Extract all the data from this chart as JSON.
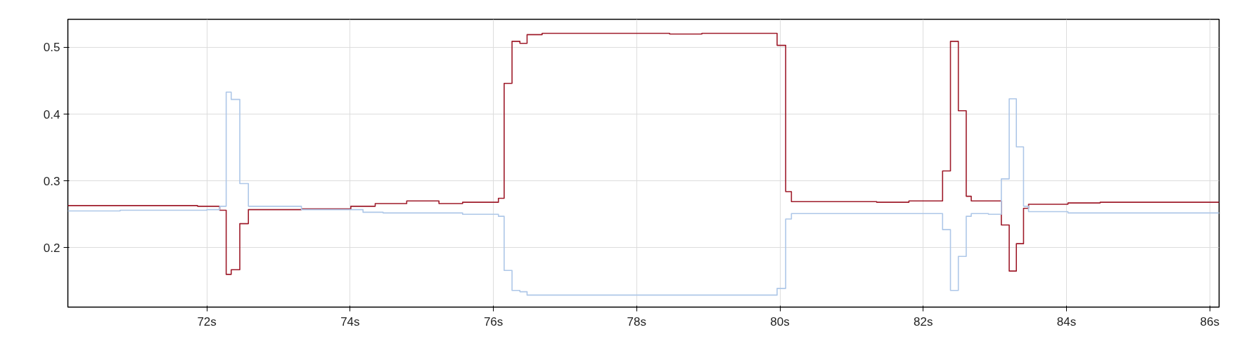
{
  "chart_data": {
    "type": "step",
    "series": [
      {
        "color": "#9e1b2a",
        "x": [
          70.06,
          71.87,
          72.18,
          72.27,
          72.34,
          72.46,
          72.58,
          73.32,
          74.01,
          74.35,
          74.79,
          75.24,
          75.57,
          76.07,
          76.15,
          76.26,
          76.37,
          76.47,
          76.68,
          78.46,
          78.91,
          79.96,
          80.08,
          80.16,
          81.35,
          81.8,
          82.27,
          82.38,
          82.49,
          82.6,
          82.67,
          83.09,
          83.2,
          83.3,
          83.4,
          83.47,
          84.02,
          84.47,
          86.13
        ],
        "values": [
          0.263,
          0.262,
          0.256,
          0.16,
          0.167,
          0.236,
          0.257,
          0.258,
          0.262,
          0.266,
          0.27,
          0.266,
          0.268,
          0.274,
          0.446,
          0.509,
          0.506,
          0.519,
          0.521,
          0.52,
          0.521,
          0.503,
          0.284,
          0.269,
          0.268,
          0.27,
          0.315,
          0.509,
          0.405,
          0.277,
          0.27,
          0.234,
          0.165,
          0.206,
          0.259,
          0.265,
          0.267,
          0.268,
          0.268
        ]
      },
      {
        "color": "#aec7e8",
        "x": [
          70.06,
          70.79,
          72.0,
          72.18,
          72.27,
          72.34,
          72.46,
          72.58,
          73.32,
          74.18,
          74.46,
          74.9,
          75.57,
          76.07,
          76.15,
          76.26,
          76.37,
          76.47,
          79.96,
          80.08,
          80.16,
          82.27,
          82.38,
          82.49,
          82.6,
          82.67,
          82.91,
          83.09,
          83.2,
          83.3,
          83.4,
          83.47,
          84.02,
          86.13
        ],
        "values": [
          0.255,
          0.256,
          0.257,
          0.262,
          0.433,
          0.422,
          0.296,
          0.262,
          0.257,
          0.253,
          0.252,
          0.252,
          0.25,
          0.247,
          0.166,
          0.136,
          0.134,
          0.129,
          0.139,
          0.243,
          0.251,
          0.227,
          0.136,
          0.187,
          0.247,
          0.251,
          0.25,
          0.303,
          0.423,
          0.351,
          0.262,
          0.254,
          0.252,
          0.251
        ]
      }
    ],
    "xlim": [
      70.06,
      86.13
    ],
    "ylim": [
      0.111,
      0.542
    ],
    "xticks": [
      {
        "value": 72,
        "label": "72s"
      },
      {
        "value": 74,
        "label": "74s"
      },
      {
        "value": 76,
        "label": "76s"
      },
      {
        "value": 78,
        "label": "78s"
      },
      {
        "value": 80,
        "label": "80s"
      },
      {
        "value": 82,
        "label": "82s"
      },
      {
        "value": 84,
        "label": "84s"
      },
      {
        "value": 86,
        "label": "86s"
      }
    ],
    "yticks": [
      0.2,
      0.3,
      0.4,
      0.5
    ],
    "grid": true
  }
}
